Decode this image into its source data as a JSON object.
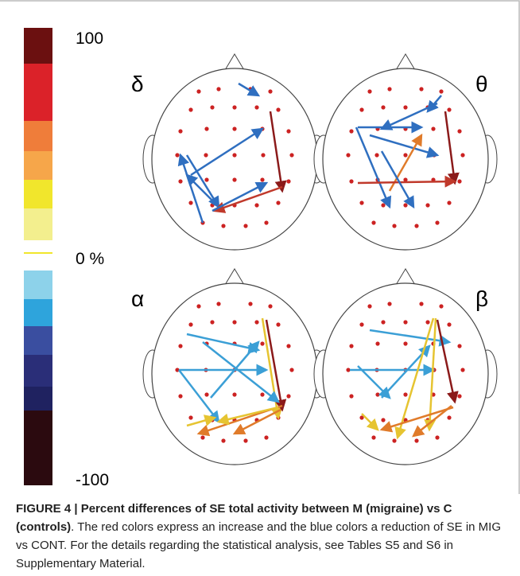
{
  "figure": {
    "colorbar_labels": {
      "top": "100",
      "middle": "0 %",
      "bottom": "-100"
    },
    "panels": [
      "δ",
      "θ",
      "α",
      "β"
    ],
    "caption": {
      "label": "FIGURE 4 | Percent differences of SE total activity between M (migraine) vs C (controls)",
      "text": ". The red colors express an increase and the blue colors a reduction of SE in MIG vs CONT. For the details regarding the statistical analysis, see Tables S5 and S6 in Supplementary Material."
    }
  }
}
